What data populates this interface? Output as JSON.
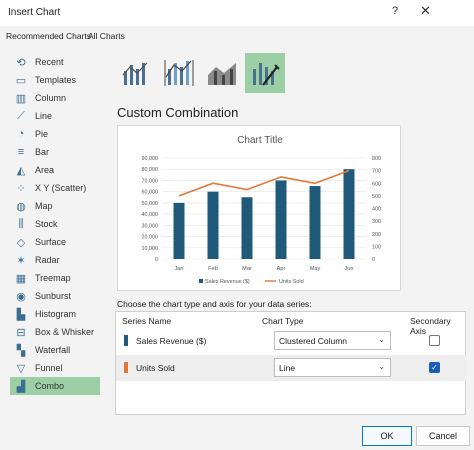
{
  "window": {
    "title": "Insert Chart",
    "help": "?",
    "close": "✕"
  },
  "tabs": [
    {
      "label": "Recommended Charts"
    },
    {
      "label": "All Charts"
    }
  ],
  "sidebar": {
    "items": [
      {
        "label": "Recent",
        "icon": "recent-icon"
      },
      {
        "label": "Templates",
        "icon": "templates-icon"
      },
      {
        "label": "Column",
        "icon": "column-icon"
      },
      {
        "label": "Line",
        "icon": "line-icon"
      },
      {
        "label": "Pie",
        "icon": "pie-icon"
      },
      {
        "label": "Bar",
        "icon": "bar-icon"
      },
      {
        "label": "Area",
        "icon": "area-icon"
      },
      {
        "label": "X Y (Scatter)",
        "icon": "scatter-icon"
      },
      {
        "label": "Map",
        "icon": "map-icon"
      },
      {
        "label": "Stock",
        "icon": "stock-icon"
      },
      {
        "label": "Surface",
        "icon": "surface-icon"
      },
      {
        "label": "Radar",
        "icon": "radar-icon"
      },
      {
        "label": "Treemap",
        "icon": "treemap-icon"
      },
      {
        "label": "Sunburst",
        "icon": "sunburst-icon"
      },
      {
        "label": "Histogram",
        "icon": "histogram-icon"
      },
      {
        "label": "Box & Whisker",
        "icon": "box-whisker-icon"
      },
      {
        "label": "Waterfall",
        "icon": "waterfall-icon"
      },
      {
        "label": "Funnel",
        "icon": "funnel-icon"
      },
      {
        "label": "Combo",
        "icon": "combo-icon"
      }
    ]
  },
  "combo_heading": "Custom Combination",
  "chart_data": {
    "type": "bar",
    "title": "Chart Title",
    "categories": [
      "Jan",
      "Feb",
      "Mar",
      "Apr",
      "May",
      "Jun"
    ],
    "series": [
      {
        "name": "Sales Revenue ($)",
        "kind": "bar",
        "axis": "primary",
        "values": [
          50000,
          60000,
          55000,
          70000,
          65000,
          80000
        ]
      },
      {
        "name": "Units Sold",
        "kind": "line",
        "axis": "secondary",
        "values": [
          500,
          600,
          550,
          650,
          600,
          700
        ]
      }
    ],
    "y_primary_ticks": [
      "0",
      "10,000",
      "20,000",
      "30,000",
      "40,000",
      "50,000",
      "60,000",
      "70,000",
      "80,000",
      "90,000"
    ],
    "y_primary_range": [
      0,
      90000
    ],
    "y_secondary_ticks": [
      "0",
      "100",
      "200",
      "300",
      "400",
      "500",
      "600",
      "700",
      "800"
    ],
    "y_secondary_range": [
      0,
      800
    ],
    "grid": true,
    "legend": "bottom",
    "colors": {
      "bar": "#1f5a7a",
      "line": "#e07a36"
    }
  },
  "series_prompt": "Choose the chart type and axis for your data series:",
  "series_table": {
    "headers": {
      "name": "Series Name",
      "type": "Chart Type",
      "secondary": "Secondary Axis"
    },
    "rows": [
      {
        "name": "Sales Revenue ($)",
        "type": "Clustered Column",
        "secondary": false,
        "color": "#1f5a7a"
      },
      {
        "name": "Units Sold",
        "type": "Line",
        "secondary": true,
        "color": "#e07a36"
      }
    ]
  },
  "buttons": {
    "ok": "OK",
    "cancel": "Cancel"
  }
}
